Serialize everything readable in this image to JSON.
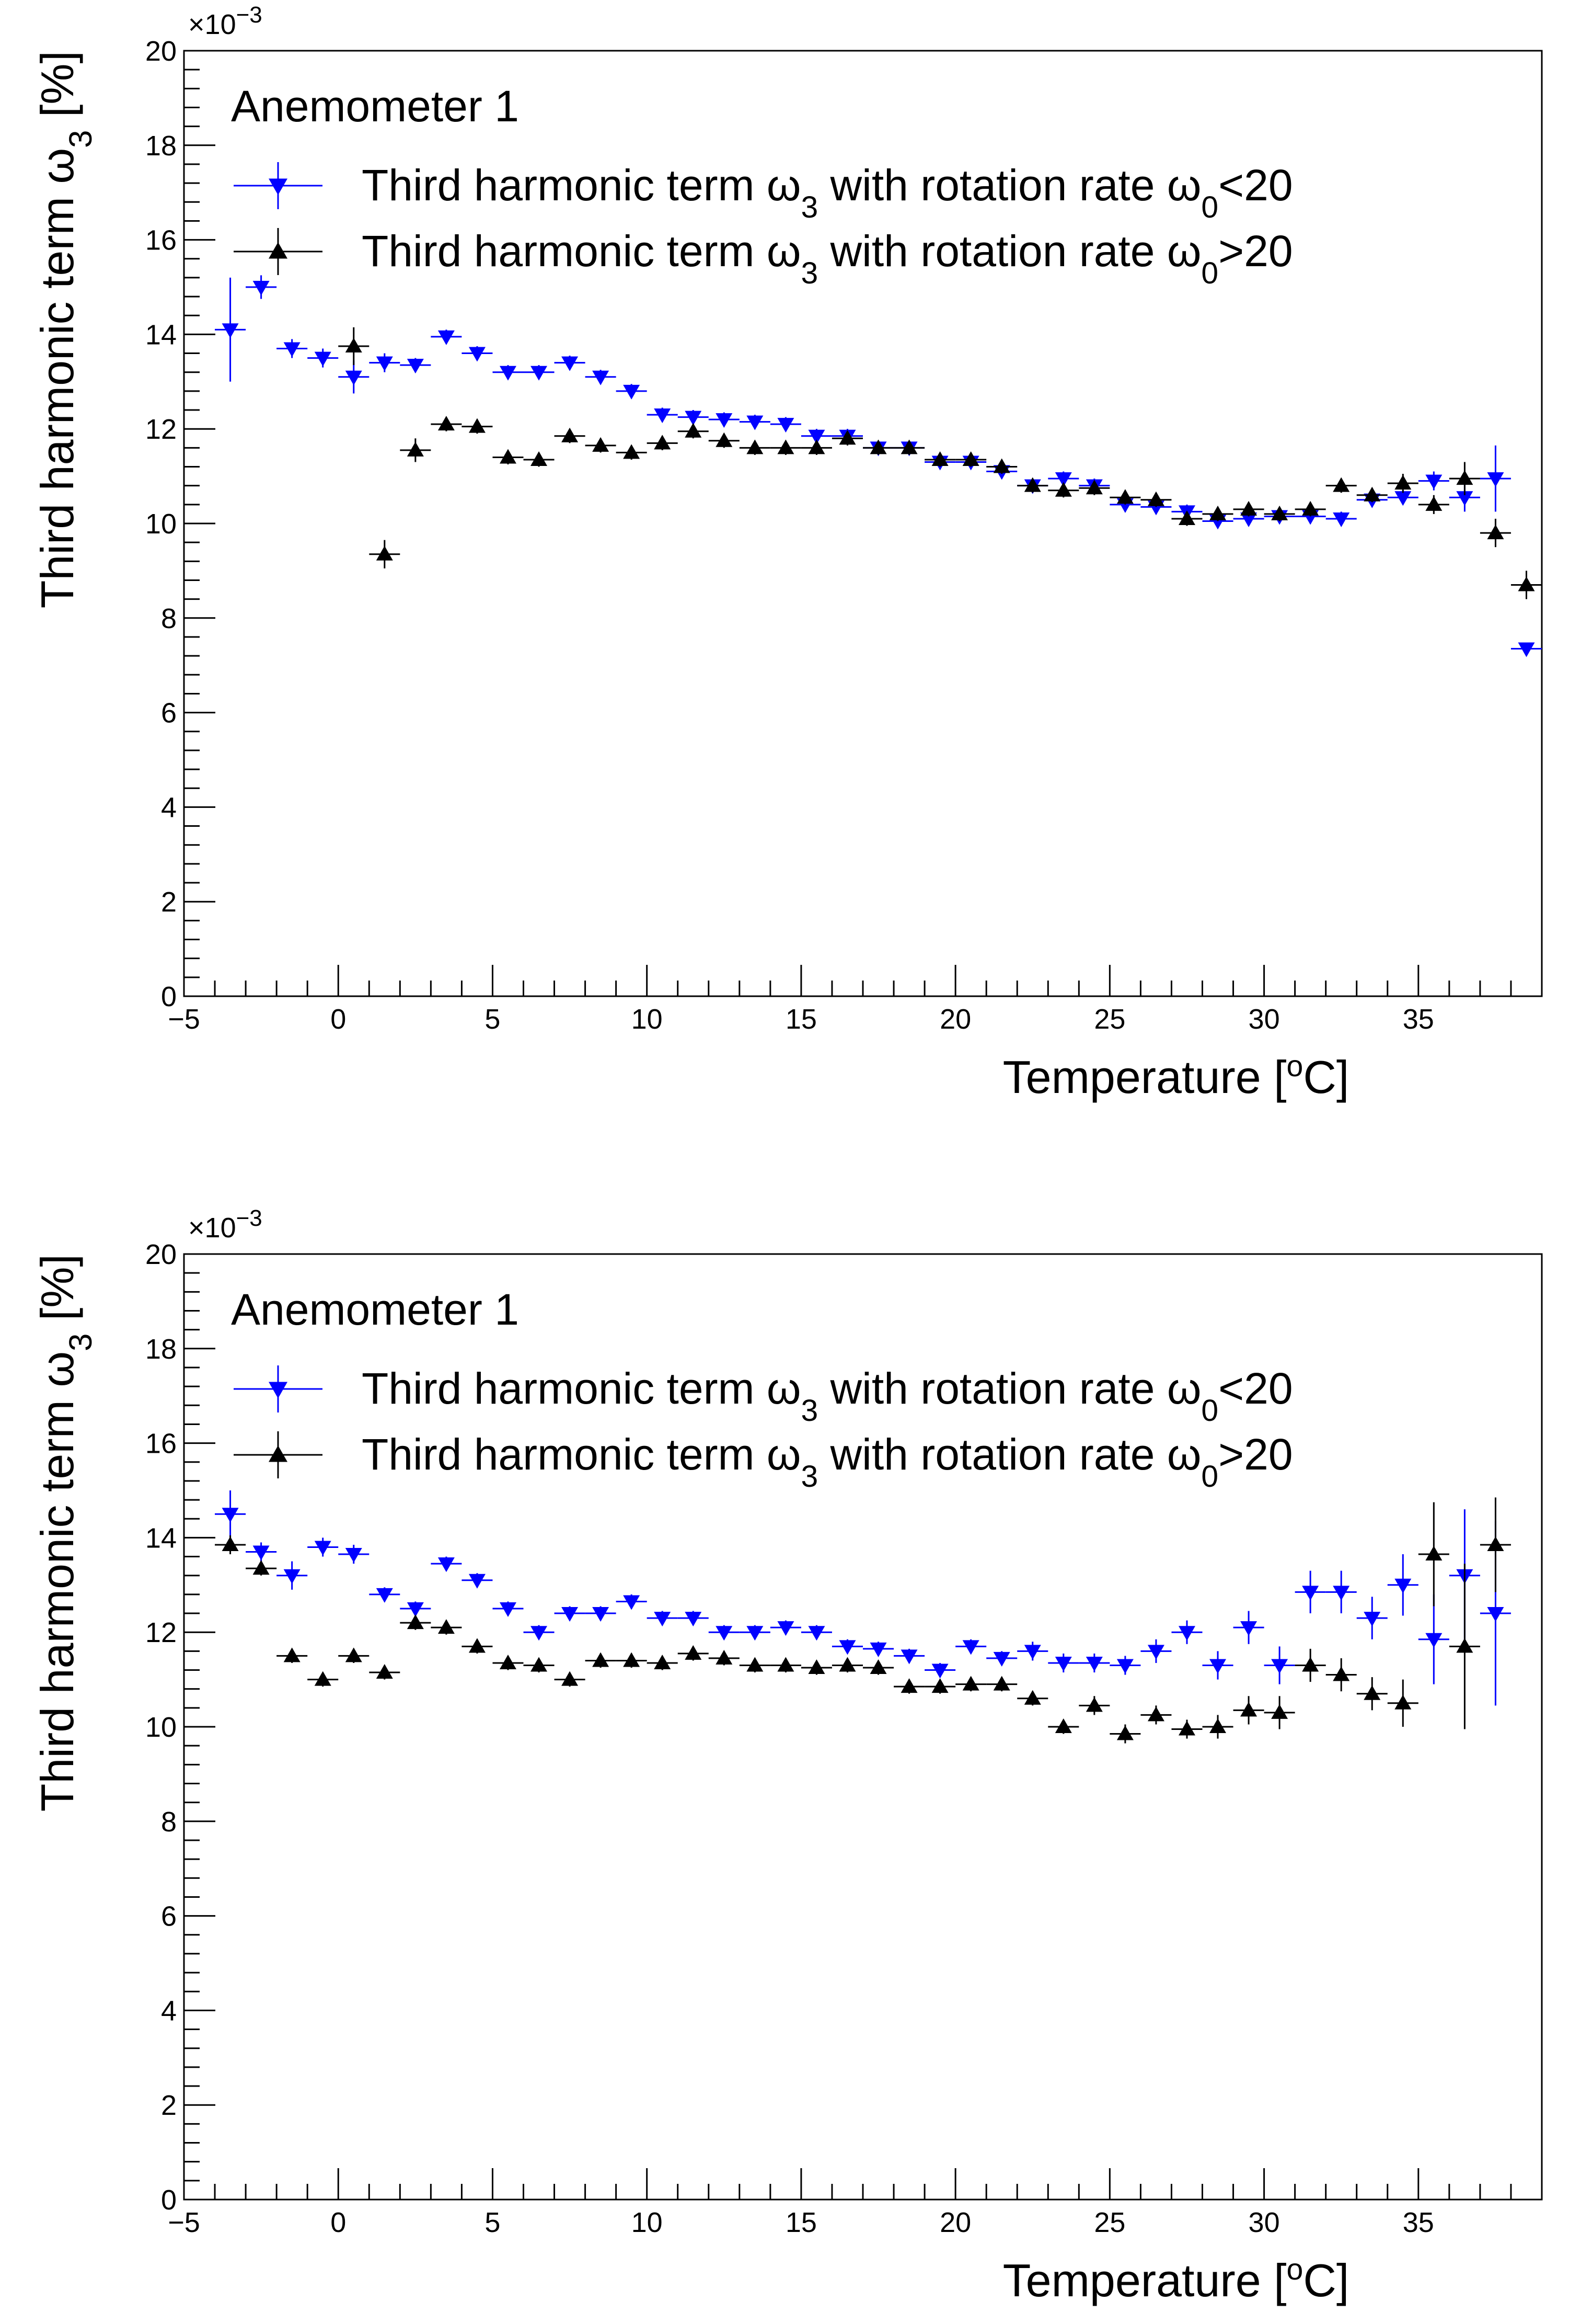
{
  "chart_data": [
    {
      "type": "scatter",
      "xlabel": "Temperature [°C]",
      "ylabel": "Third harmonic term ω3 [%]",
      "y_exponent": "×10⁻³",
      "xlim": [
        -5,
        39
      ],
      "ylim": [
        0,
        20
      ],
      "x_ticks": [
        -5,
        0,
        5,
        10,
        15,
        20,
        25,
        30,
        35
      ],
      "y_ticks": [
        0,
        2,
        4,
        6,
        8,
        10,
        12,
        14,
        16,
        18,
        20
      ],
      "grid": false,
      "legend_position": "top-left",
      "legend_header": "Anemometer 1",
      "series": [
        {
          "name": "Third harmonic term ω3 with rotation rate ω0<20",
          "color": "#0000ff",
          "marker": "triangle-down",
          "x": [
            -3.5,
            -2.5,
            -1.5,
            -0.5,
            0.5,
            1.5,
            2.5,
            3.5,
            4.5,
            5.5,
            6.5,
            7.5,
            8.5,
            9.5,
            10.5,
            11.5,
            12.5,
            13.5,
            14.5,
            15.5,
            16.5,
            17.5,
            18.5,
            19.5,
            20.5,
            21.5,
            22.5,
            23.5,
            24.5,
            25.5,
            26.5,
            27.5,
            28.5,
            29.5,
            30.5,
            31.5,
            32.5,
            33.5,
            34.5,
            35.5,
            36.5,
            37.5,
            38.5
          ],
          "y": [
            14.1,
            15.0,
            13.7,
            13.5,
            13.1,
            13.4,
            13.35,
            13.95,
            13.6,
            13.2,
            13.2,
            13.4,
            13.1,
            12.8,
            12.3,
            12.25,
            12.2,
            12.15,
            12.1,
            11.85,
            11.85,
            11.6,
            11.6,
            11.3,
            11.3,
            11.1,
            10.8,
            10.95,
            10.8,
            10.4,
            10.35,
            10.25,
            10.05,
            10.1,
            10.15,
            10.15,
            10.1,
            10.5,
            10.55,
            10.9,
            10.55,
            10.95,
            7.35
          ],
          "yerr": [
            1.1,
            0.25,
            0.2,
            0.2,
            0.35,
            0.2,
            0.15,
            0.15,
            0.15,
            0.15,
            0.15,
            0.15,
            0.15,
            0.15,
            0.15,
            0.15,
            0.15,
            0.15,
            0.15,
            0.15,
            0.15,
            0.15,
            0.15,
            0.15,
            0.15,
            0.15,
            0.15,
            0.15,
            0.15,
            0.15,
            0.15,
            0.15,
            0.15,
            0.15,
            0.15,
            0.15,
            0.15,
            0.15,
            0.15,
            0.2,
            0.3,
            0.7,
            0.1
          ]
        },
        {
          "name": "Third harmonic term ω3 with rotation rate ω0>20",
          "color": "#000000",
          "marker": "triangle-up",
          "x": [
            0.5,
            1.5,
            2.5,
            3.5,
            4.5,
            5.5,
            6.5,
            7.5,
            8.5,
            9.5,
            10.5,
            11.5,
            12.5,
            13.5,
            14.5,
            15.5,
            16.5,
            17.5,
            18.5,
            19.5,
            20.5,
            21.5,
            22.5,
            23.5,
            24.5,
            25.5,
            26.5,
            27.5,
            28.5,
            29.5,
            30.5,
            31.5,
            32.5,
            33.5,
            34.5,
            35.5,
            36.5,
            37.5,
            38.5
          ],
          "y": [
            13.75,
            9.35,
            11.55,
            12.1,
            12.05,
            11.4,
            11.35,
            11.85,
            11.65,
            11.5,
            11.7,
            11.95,
            11.75,
            11.6,
            11.6,
            11.6,
            11.8,
            11.6,
            11.6,
            11.35,
            11.35,
            11.2,
            10.8,
            10.7,
            10.75,
            10.55,
            10.5,
            10.1,
            10.2,
            10.3,
            10.2,
            10.3,
            10.8,
            10.6,
            10.85,
            10.4,
            10.95,
            9.8,
            8.7
          ],
          "yerr": [
            0.4,
            0.3,
            0.25,
            0.15,
            0.15,
            0.15,
            0.15,
            0.15,
            0.15,
            0.15,
            0.15,
            0.15,
            0.15,
            0.15,
            0.15,
            0.15,
            0.15,
            0.15,
            0.15,
            0.15,
            0.15,
            0.15,
            0.15,
            0.15,
            0.15,
            0.15,
            0.15,
            0.15,
            0.15,
            0.15,
            0.15,
            0.15,
            0.15,
            0.15,
            0.2,
            0.2,
            0.35,
            0.3,
            0.3
          ]
        }
      ]
    },
    {
      "type": "scatter",
      "xlabel": "Temperature [°C]",
      "ylabel": "Third harmonic term ω3 [%]",
      "y_exponent": "×10⁻³",
      "xlim": [
        -5,
        39
      ],
      "ylim": [
        0,
        20
      ],
      "x_ticks": [
        -5,
        0,
        5,
        10,
        15,
        20,
        25,
        30,
        35
      ],
      "y_ticks": [
        0,
        2,
        4,
        6,
        8,
        10,
        12,
        14,
        16,
        18,
        20
      ],
      "grid": false,
      "legend_position": "top-left",
      "legend_header": "Anemometer 1",
      "series": [
        {
          "name": "Third harmonic term ω3 with rotation rate ω0<20",
          "color": "#0000ff",
          "marker": "triangle-down",
          "x": [
            -3.5,
            -2.5,
            -1.5,
            -0.5,
            0.5,
            1.5,
            2.5,
            3.5,
            4.5,
            5.5,
            6.5,
            7.5,
            8.5,
            9.5,
            10.5,
            11.5,
            12.5,
            13.5,
            14.5,
            15.5,
            16.5,
            17.5,
            18.5,
            19.5,
            20.5,
            21.5,
            22.5,
            23.5,
            24.5,
            25.5,
            26.5,
            27.5,
            28.5,
            29.5,
            30.5,
            31.5,
            32.5,
            33.5,
            34.5,
            35.5,
            36.5,
            37.5
          ],
          "y": [
            14.5,
            13.7,
            13.2,
            13.8,
            13.65,
            12.8,
            12.5,
            13.45,
            13.1,
            12.5,
            12.0,
            12.4,
            12.4,
            12.65,
            12.3,
            12.3,
            12.0,
            12.0,
            12.1,
            12.0,
            11.7,
            11.65,
            11.5,
            11.2,
            11.7,
            11.45,
            11.6,
            11.35,
            11.35,
            11.3,
            11.6,
            12.0,
            11.3,
            12.1,
            11.3,
            12.85,
            12.85,
            12.3,
            13.0,
            11.85,
            13.2,
            12.4
          ],
          "yerr": [
            0.5,
            0.2,
            0.3,
            0.2,
            0.2,
            0.15,
            0.15,
            0.15,
            0.15,
            0.15,
            0.15,
            0.15,
            0.15,
            0.15,
            0.15,
            0.15,
            0.15,
            0.15,
            0.15,
            0.15,
            0.15,
            0.15,
            0.15,
            0.15,
            0.15,
            0.15,
            0.2,
            0.2,
            0.2,
            0.2,
            0.25,
            0.25,
            0.3,
            0.35,
            0.4,
            0.45,
            0.45,
            0.45,
            0.65,
            0.95,
            1.4,
            1.95
          ]
        },
        {
          "name": "Third harmonic term ω3 with rotation rate ω0>20",
          "color": "#000000",
          "marker": "triangle-up",
          "x": [
            -3.5,
            -2.5,
            -1.5,
            -0.5,
            0.5,
            1.5,
            2.5,
            3.5,
            4.5,
            5.5,
            6.5,
            7.5,
            8.5,
            9.5,
            10.5,
            11.5,
            12.5,
            13.5,
            14.5,
            15.5,
            16.5,
            17.5,
            18.5,
            19.5,
            20.5,
            21.5,
            22.5,
            23.5,
            24.5,
            25.5,
            26.5,
            27.5,
            28.5,
            29.5,
            30.5,
            31.5,
            32.5,
            33.5,
            34.5,
            35.5,
            36.5,
            37.5
          ],
          "y": [
            13.85,
            13.35,
            11.5,
            11.0,
            11.5,
            11.15,
            12.2,
            12.1,
            11.7,
            11.35,
            11.3,
            11.0,
            11.4,
            11.4,
            11.35,
            11.55,
            11.45,
            11.3,
            11.3,
            11.25,
            11.3,
            11.25,
            10.85,
            10.85,
            10.9,
            10.9,
            10.6,
            10.0,
            10.45,
            9.85,
            10.25,
            9.95,
            10.0,
            10.35,
            10.3,
            11.3,
            11.1,
            10.7,
            10.5,
            13.65,
            11.7,
            13.85
          ],
          "yerr": [
            0.2,
            0.15,
            0.15,
            0.15,
            0.15,
            0.15,
            0.15,
            0.15,
            0.15,
            0.15,
            0.15,
            0.15,
            0.15,
            0.15,
            0.15,
            0.15,
            0.15,
            0.15,
            0.15,
            0.15,
            0.15,
            0.15,
            0.15,
            0.15,
            0.15,
            0.15,
            0.15,
            0.15,
            0.2,
            0.2,
            0.2,
            0.2,
            0.25,
            0.3,
            0.35,
            0.35,
            0.35,
            0.35,
            0.5,
            1.1,
            1.75,
            1.0
          ]
        }
      ]
    }
  ]
}
